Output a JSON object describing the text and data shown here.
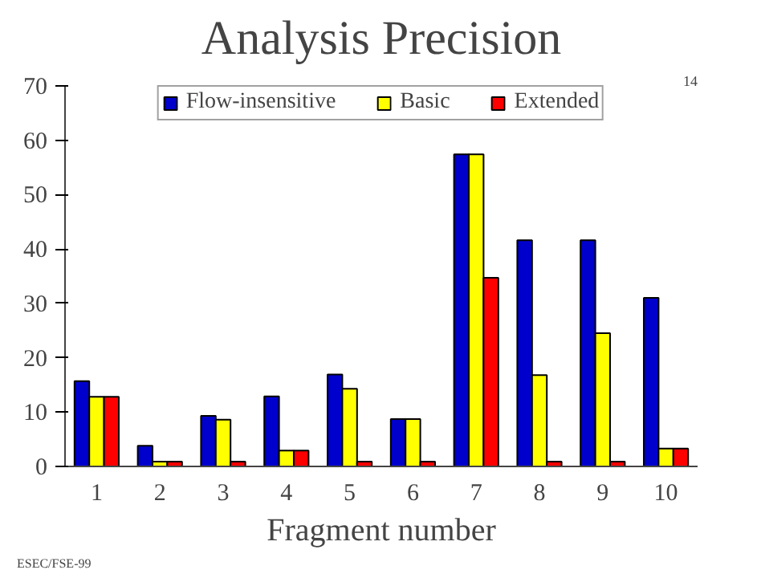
{
  "chart_data": {
    "type": "bar",
    "title": "Analysis Precision",
    "xlabel": "Fragment number",
    "categories": [
      "1",
      "2",
      "3",
      "4",
      "5",
      "6",
      "7",
      "8",
      "9",
      "10"
    ],
    "series": [
      {
        "name": "Flow-insensitive",
        "color": "#0000cc",
        "values": [
          15.7,
          3.8,
          9.3,
          12.9,
          16.9,
          8.7,
          57.4,
          41.6,
          41.6,
          31
        ]
      },
      {
        "name": "Basic",
        "color": "#ffff00",
        "values": [
          12.8,
          0.9,
          8.6,
          2.9,
          14.3,
          8.7,
          57.4,
          16.8,
          24.5,
          3.3
        ]
      },
      {
        "name": "Extended",
        "color": "#ff0000",
        "values": [
          12.8,
          0.9,
          0.9,
          2.9,
          0.9,
          0.9,
          34.7,
          0.9,
          0.9,
          3.3
        ]
      }
    ],
    "ylim": [
      0,
      70
    ],
    "yticks": [
      0,
      10,
      20,
      30,
      40,
      50,
      60,
      70
    ],
    "grid": false,
    "legend": "top",
    "annotations": [
      "14",
      "ESEC/FSE-99"
    ]
  }
}
